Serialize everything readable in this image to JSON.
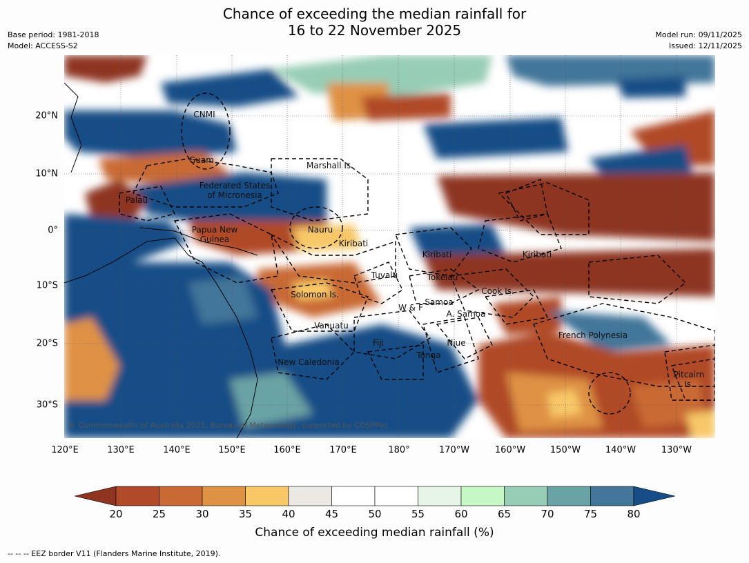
{
  "title_line1": "Chance of exceeding the median rainfall for",
  "title_line2": "16 to 22 November 2025",
  "meta_left": [
    "Base period: 1981-2018",
    "Model: ACCESS-S2"
  ],
  "meta_right": [
    "Model run: 09/11/2025",
    "Issued: 12/11/2025"
  ],
  "map": {
    "lat_labels": [
      "20°N",
      "10°N",
      "0°",
      "10°S",
      "20°S",
      "30°S"
    ],
    "lon_labels": [
      "120°E",
      "130°E",
      "140°E",
      "150°E",
      "160°E",
      "170°E",
      "180°",
      "170°W",
      "160°W",
      "150°W",
      "140°W",
      "130°W"
    ],
    "region_labels": [
      "CNMI",
      "Guam",
      "Marshall Is.",
      "Federated States\nof Micronesia",
      "Palau",
      "Nauru",
      "Papua New\nGuinea",
      "Kiribati",
      "Kiribati",
      "Kiribati",
      "Tuvalu",
      "Tokelau",
      "Cook Is.",
      "Solomon Is.",
      "Samoa",
      "W & F",
      "A. Samoa",
      "Vanuatu",
      "Fiji",
      "Niue",
      "French Polynesia",
      "Tonga",
      "New Caledonia",
      "Pitcairn\nIs."
    ],
    "copyright": "© Commonwealth of Australia 2025, Bureau of Meteorology, supported by COSPPac"
  },
  "colorbar": {
    "title": "Chance of exceeding median rainfall (%)",
    "ticks": [
      "20",
      "25",
      "30",
      "35",
      "40",
      "45",
      "50",
      "55",
      "60",
      "65",
      "70",
      "75",
      "80"
    ],
    "colors": [
      "#8e3420",
      "#b04a28",
      "#c96a35",
      "#df9244",
      "#f8c867",
      "#ece9e4",
      "#ffffff",
      "#ffffff",
      "#e6f5e6",
      "#c6f8c6",
      "#97cdb6",
      "#6aa3a5",
      "#43769a",
      "#164d86"
    ]
  },
  "footnote": "--  --  -- EEZ border V11 (Flanders Marine Institute, 2019)."
}
